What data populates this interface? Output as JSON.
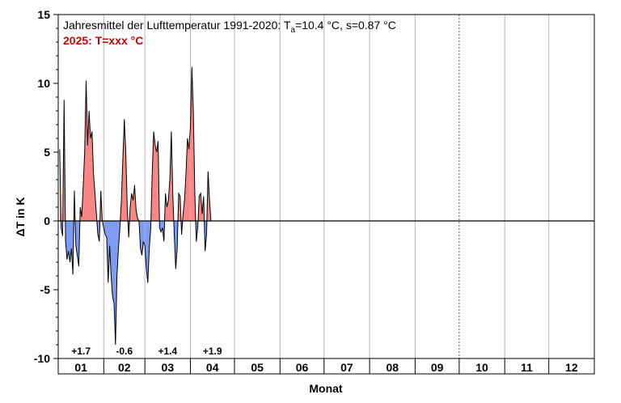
{
  "colors": {
    "positive_fill": "#f98686",
    "negative_fill": "#7f9cf5",
    "line": "#000000",
    "grid": "#b5b5b5",
    "subtitle": "#d40000"
  },
  "chart_data": {
    "type": "area",
    "title_prefix": "Jahresmittel der Lufttemperatur 1991-2020: T",
    "title_sub": "a",
    "title_suffix": "=10.4 °C, s=0.87 °C",
    "subtitle": "2025: T=xxx °C",
    "xlabel": "Monat",
    "ylabel": "ΔT in K",
    "ylim": [
      -10,
      15
    ],
    "yticks": [
      -10,
      -5,
      0,
      5,
      10,
      15
    ],
    "x_unit": "day of year",
    "xlim": [
      0,
      365
    ],
    "grid": "vertical month boundaries",
    "months": [
      "01",
      "02",
      "03",
      "04",
      "05",
      "06",
      "07",
      "08",
      "09",
      "10",
      "11",
      "12"
    ],
    "month_lengths": [
      31,
      28,
      31,
      30,
      31,
      30,
      31,
      31,
      30,
      31,
      30,
      31
    ],
    "month_anomalies": [
      {
        "month": "01",
        "label": "+1.7"
      },
      {
        "month": "02",
        "label": "-0.6"
      },
      {
        "month": "03",
        "label": "+1.4"
      },
      {
        "month": "04",
        "label": "+1.9"
      }
    ],
    "series": [
      {
        "x": [
          1,
          2,
          3,
          4,
          5,
          6,
          7,
          8,
          9,
          10,
          11,
          12,
          13,
          14,
          15,
          16,
          17,
          18,
          19,
          20,
          21,
          22,
          23,
          24,
          25,
          26,
          27,
          28,
          29,
          30,
          31,
          32,
          33,
          34,
          35,
          36,
          37,
          38,
          39,
          40,
          41,
          42,
          43,
          44,
          45,
          46,
          47,
          48,
          49,
          50,
          51,
          52,
          53,
          54,
          55,
          56,
          57,
          58,
          59,
          60,
          61,
          62,
          63,
          64,
          65,
          66,
          67,
          68,
          69,
          70,
          71,
          72,
          73,
          74,
          75,
          76,
          77,
          78,
          79,
          80,
          81,
          82,
          83,
          84,
          85,
          86,
          87,
          88,
          89,
          90,
          91,
          92,
          93,
          94,
          95,
          96,
          97,
          98,
          99,
          100,
          101,
          102,
          103,
          104,
          105,
          106,
          107,
          108,
          109,
          110,
          111,
          112,
          113,
          114,
          115,
          116,
          117,
          118,
          119,
          120,
          121,
          122,
          123,
          124
        ],
        "values": [
          5.2,
          -0.5,
          -1.1,
          8.8,
          -1.5,
          -2.8,
          -2.2,
          -3.0,
          -2.0,
          -3.9,
          2.2,
          -1.8,
          -2.5,
          -3.3,
          1.0,
          0.3,
          2.5,
          5.0,
          10.2,
          5.5,
          8.0,
          6.0,
          6.5,
          3.5,
          2.0,
          0.5,
          -1.0,
          -1.5,
          2.2,
          0.0,
          -0.5,
          -1.0,
          -1.2,
          -4.5,
          -1.8,
          -4.0,
          -5.5,
          -6.0,
          -9.0,
          -4.0,
          -2.0,
          -0.5,
          1.5,
          4.5,
          7.4,
          5.0,
          1.0,
          -1.2,
          1.0,
          2.0,
          1.5,
          2.6,
          0.8,
          0.2,
          0.0,
          -2.0,
          -2.5,
          -1.5,
          -1.8,
          -3.5,
          -4.5,
          -2.0,
          -0.5,
          3.5,
          6.5,
          5.5,
          5.0,
          5.8,
          -0.5,
          -0.8,
          -0.5,
          -1.5,
          2.0,
          1.0,
          1.5,
          3.0,
          6.5,
          2.0,
          -1.0,
          -3.5,
          -2.0,
          2.0,
          1.8,
          -1.0,
          0.5,
          1.5,
          3.5,
          6.0,
          5.2,
          6.8,
          11.2,
          8.0,
          2.0,
          -1.5,
          -0.5,
          1.8,
          2.0,
          0.5,
          1.8,
          -2.2,
          -1.0,
          3.6,
          1.5,
          0.0,
          0.0,
          0.0,
          0.0,
          0.0,
          0.0,
          0.0,
          0.0,
          0.0,
          0.0,
          0.0,
          0.0,
          0.0,
          0.0,
          0.0,
          0.0,
          0.0,
          0.0,
          0.0,
          0.0,
          0.0
        ]
      }
    ]
  }
}
